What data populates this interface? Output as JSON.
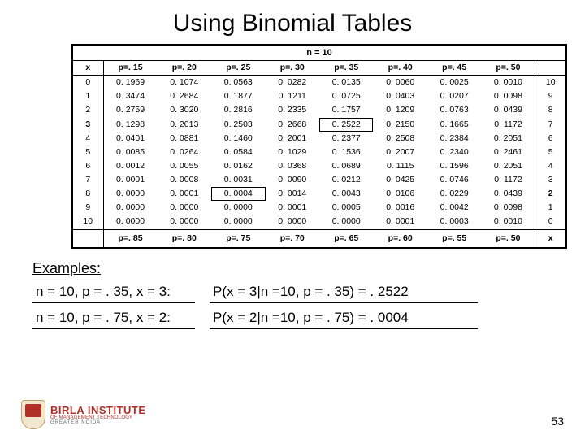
{
  "title": "Using Binomial Tables",
  "table": {
    "n_label": "n = 10",
    "x_head": "x",
    "p_heads": [
      "p=. 15",
      "p=. 20",
      "p=. 25",
      "p=. 30",
      "p=. 35",
      "p=. 40",
      "p=. 45",
      "p=. 50"
    ],
    "x_vals": [
      "0",
      "1",
      "2",
      "3",
      "4",
      "5",
      "6",
      "7",
      "8",
      "9",
      "10"
    ],
    "bold_x_rows": [
      3
    ],
    "right_vals": [
      "10",
      "9",
      "8",
      "7",
      "6",
      "5",
      "4",
      "3",
      "2",
      "1",
      "0"
    ],
    "bold_right_rows": [
      8
    ],
    "rows": [
      [
        "0. 1969",
        "0. 1074",
        "0. 0563",
        "0. 0282",
        "0. 0135",
        "0. 0060",
        "0. 0025",
        "0. 0010"
      ],
      [
        "0. 3474",
        "0. 2684",
        "0. 1877",
        "0. 1211",
        "0. 0725",
        "0. 0403",
        "0. 0207",
        "0. 0098"
      ],
      [
        "0. 2759",
        "0. 3020",
        "0. 2816",
        "0. 2335",
        "0. 1757",
        "0. 1209",
        "0. 0763",
        "0. 0439"
      ],
      [
        "0. 1298",
        "0. 2013",
        "0. 2503",
        "0. 2668",
        "0. 2522",
        "0. 2150",
        "0. 1665",
        "0. 1172"
      ],
      [
        "0. 0401",
        "0. 0881",
        "0. 1460",
        "0. 2001",
        "0. 2377",
        "0. 2508",
        "0. 2384",
        "0. 2051"
      ],
      [
        "0. 0085",
        "0. 0264",
        "0. 0584",
        "0. 1029",
        "0. 1536",
        "0. 2007",
        "0. 2340",
        "0. 2461"
      ],
      [
        "0. 0012",
        "0. 0055",
        "0. 0162",
        "0. 0368",
        "0. 0689",
        "0. 1115",
        "0. 1596",
        "0. 2051"
      ],
      [
        "0. 0001",
        "0. 0008",
        "0. 0031",
        "0. 0090",
        "0. 0212",
        "0. 0425",
        "0. 0746",
        "0. 1172"
      ],
      [
        "0. 0000",
        "0. 0001",
        "0. 0004",
        "0. 0014",
        "0. 0043",
        "0. 0106",
        "0. 0229",
        "0. 0439"
      ],
      [
        "0. 0000",
        "0. 0000",
        "0. 0000",
        "0. 0001",
        "0. 0005",
        "0. 0016",
        "0. 0042",
        "0. 0098"
      ],
      [
        "0. 0000",
        "0. 0000",
        "0. 0000",
        "0. 0000",
        "0. 0000",
        "0. 0001",
        "0. 0003",
        "0. 0010"
      ]
    ],
    "boxed_cells": [
      [
        3,
        4
      ],
      [
        8,
        2
      ]
    ],
    "foot": [
      "p=. 85",
      "p=. 80",
      "p=. 75",
      "p=. 70",
      "p=. 65",
      "p=. 60",
      "p=. 55",
      "p=. 50"
    ],
    "foot_x": "x"
  },
  "examples": {
    "heading": "Examples:",
    "rows": [
      {
        "q": "n = 10, p = . 35, x = 3:",
        "a": "P(x = 3|n =10, p = . 35) = . 2522"
      },
      {
        "q": "n = 10, p = . 75, x = 2:",
        "a": "P(x = 2|n =10, p = . 75) = . 0004"
      }
    ]
  },
  "logo": {
    "l1": "BIRLA INSTITUTE",
    "l2": "OF MANAGEMENT TECHNOLOGY",
    "l3": "GREATER NOIDA"
  },
  "page_number": "53"
}
